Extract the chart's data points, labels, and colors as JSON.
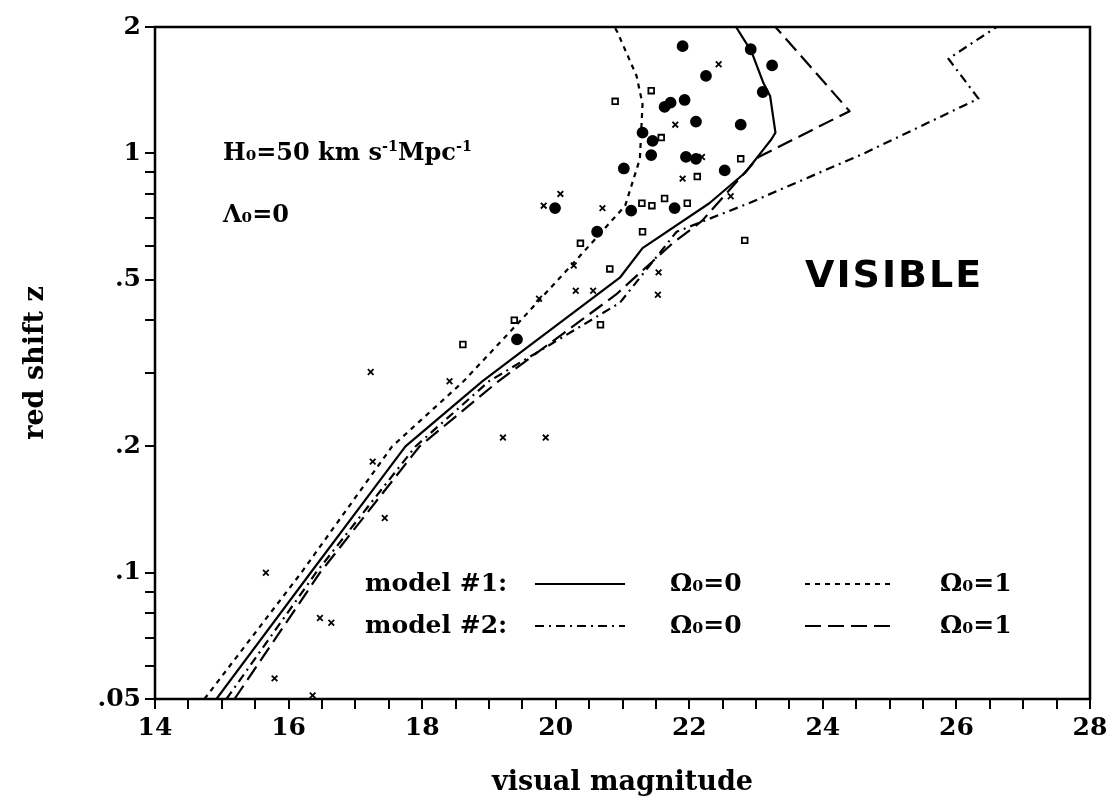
{
  "chart_data": {
    "type": "line",
    "xlabel": "visual magnitude",
    "ylabel": "red shift z",
    "log": "y",
    "xlim": [
      14,
      28
    ],
    "xticks": [
      14,
      {
        "value": 14.5,
        "label": null
      },
      {
        "value": 15,
        "label": null
      },
      {
        "value": 15.5,
        "label": null
      },
      16,
      {
        "value": 16.5,
        "label": null
      },
      {
        "value": 17,
        "label": null
      },
      {
        "value": 17.5,
        "label": null
      },
      18,
      {
        "value": 18.5,
        "label": null
      },
      {
        "value": 19,
        "label": null
      },
      {
        "value": 19.5,
        "label": null
      },
      20,
      {
        "value": 20.5,
        "label": null
      },
      {
        "value": 21,
        "label": null
      },
      {
        "value": 21.5,
        "label": null
      },
      22,
      {
        "value": 22.5,
        "label": null
      },
      {
        "value": 23,
        "label": null
      },
      {
        "value": 23.5,
        "label": null
      },
      24,
      {
        "value": 24.5,
        "label": null
      },
      {
        "value": 25,
        "label": null
      },
      {
        "value": 25.5,
        "label": null
      },
      26,
      {
        "value": 26.5,
        "label": null
      },
      {
        "value": 27,
        "label": null
      },
      {
        "value": 27.5,
        "label": null
      },
      28
    ],
    "ylim": [
      0.05,
      2
    ],
    "yticks": [
      {
        "value": 0.05,
        "label": ".05"
      },
      {
        "value": 0.06,
        "label": null
      },
      {
        "value": 0.07,
        "label": null
      },
      {
        "value": 0.08,
        "label": null
      },
      {
        "value": 0.09,
        "label": null
      },
      {
        "value": 0.1,
        "label": ".1"
      },
      {
        "value": 0.2,
        "label": ".2"
      },
      {
        "value": 0.3,
        "label": null
      },
      {
        "value": 0.4,
        "label": null
      },
      {
        "value": 0.5,
        "label": ".5"
      },
      {
        "value": 0.6,
        "label": null
      },
      {
        "value": 0.7,
        "label": null
      },
      {
        "value": 0.8,
        "label": null
      },
      {
        "value": 0.9,
        "label": null
      },
      1,
      2
    ],
    "grid": false,
    "legend": "bottom right",
    "annotations": [
      "H₀=50 km s$^{-1}$Mpc$^{-1}$",
      "Λ₀=0",
      "VISIBLE",
      "model #1:",
      "model #2:"
    ],
    "series": [
      {
        "name": "Ω₀=0",
        "type": "line",
        "color": "#000000",
        "line_style": "solid",
        "marker": "none",
        "x": [
          14.92,
          16.33,
          17.75,
          18.9,
          20.96,
          21.3,
          22.3,
          22.84,
          23.23,
          23.29,
          23.21,
          23.11,
          22.93,
          22.7
        ],
        "values": [
          0.05,
          0.1,
          0.2,
          0.286,
          0.505,
          0.594,
          0.76,
          0.9,
          1.08,
          1.12,
          1.37,
          1.47,
          1.75,
          2
        ]
      },
      {
        "name": "Ω₀=1",
        "type": "line",
        "color": "#000000",
        "line_style": "dotted",
        "marker": "none",
        "x": [
          14.74,
          16.19,
          17.55,
          18.62,
          19.44,
          20.41,
          21.04,
          21.26,
          21.3,
          21.21,
          20.92,
          20.88
        ],
        "values": [
          0.05,
          0.1,
          0.2,
          0.286,
          0.394,
          0.58,
          0.75,
          0.97,
          1.31,
          1.53,
          1.95,
          2
        ]
      },
      {
        "name": "Ω₀=0",
        "type": "line",
        "color": "#000000",
        "line_style": "dashdot",
        "marker": "none",
        "x": [
          15.07,
          16.41,
          17.9,
          19.0,
          20.96,
          21.81,
          22.89,
          24.62,
          26.33,
          25.88,
          26.6
        ],
        "values": [
          0.05,
          0.1,
          0.2,
          0.286,
          0.44,
          0.65,
          0.76,
          1.0,
          1.35,
          1.68,
          2
        ]
      },
      {
        "name": "Ω₀=1",
        "type": "line",
        "color": "#000000",
        "line_style": "dashed",
        "marker": "none",
        "x": [
          15.19,
          16.47,
          17.96,
          19.14,
          20.9,
          21.75,
          22.19,
          23.04,
          24.4,
          23.29
        ],
        "values": [
          0.05,
          0.1,
          0.2,
          0.286,
          0.46,
          0.61,
          0.69,
          0.98,
          1.26,
          2
        ]
      },
      {
        "type": "scatter",
        "color": "#000000",
        "marker": "cross",
        "x": [
          17.23,
          18.41,
          19.75,
          20.3,
          20.56,
          20.07,
          19.82,
          20.7,
          20.27,
          22.44,
          21.79,
          22.19,
          21.9,
          22.62,
          21.54,
          21.53,
          19.21,
          19.85,
          17.26,
          17.44,
          15.66,
          16.47,
          16.64,
          15.79,
          16.36
        ],
        "values": [
          0.301,
          0.286,
          0.45,
          0.47,
          0.47,
          0.8,
          0.75,
          0.74,
          0.54,
          1.63,
          1.17,
          0.98,
          0.87,
          0.79,
          0.52,
          0.46,
          0.21,
          0.21,
          0.184,
          0.135,
          0.1,
          0.078,
          0.076,
          0.056,
          0.051
        ]
      },
      {
        "type": "scatter",
        "color": "#000000",
        "marker": "square",
        "x": [
          20.89,
          20.37,
          20.81,
          20.67,
          19.38,
          18.61,
          21.43,
          21.58,
          22.12,
          21.63,
          21.29,
          21.44,
          21.97,
          21.3,
          22.77,
          22.83
        ],
        "values": [
          1.33,
          0.61,
          0.53,
          0.39,
          0.4,
          0.35,
          1.41,
          1.09,
          0.88,
          0.78,
          0.76,
          0.75,
          0.76,
          0.65,
          0.97,
          0.62
        ]
      },
      {
        "type": "scatter",
        "color": "#000000",
        "marker": "circle",
        "x": [
          19.99,
          20.62,
          19.42,
          21.9,
          22.25,
          23.24,
          23.1,
          21.93,
          21.63,
          21.72,
          22.1,
          22.77,
          21.3,
          21.45,
          21.43,
          21.95,
          22.1,
          21.02,
          22.53,
          21.78,
          21.13,
          22.92
        ],
        "values": [
          0.74,
          0.65,
          0.36,
          1.8,
          1.53,
          1.62,
          1.4,
          1.34,
          1.29,
          1.32,
          1.19,
          1.17,
          1.12,
          1.07,
          0.99,
          0.98,
          0.97,
          0.92,
          0.91,
          0.74,
          0.73,
          1.77
        ]
      }
    ]
  }
}
